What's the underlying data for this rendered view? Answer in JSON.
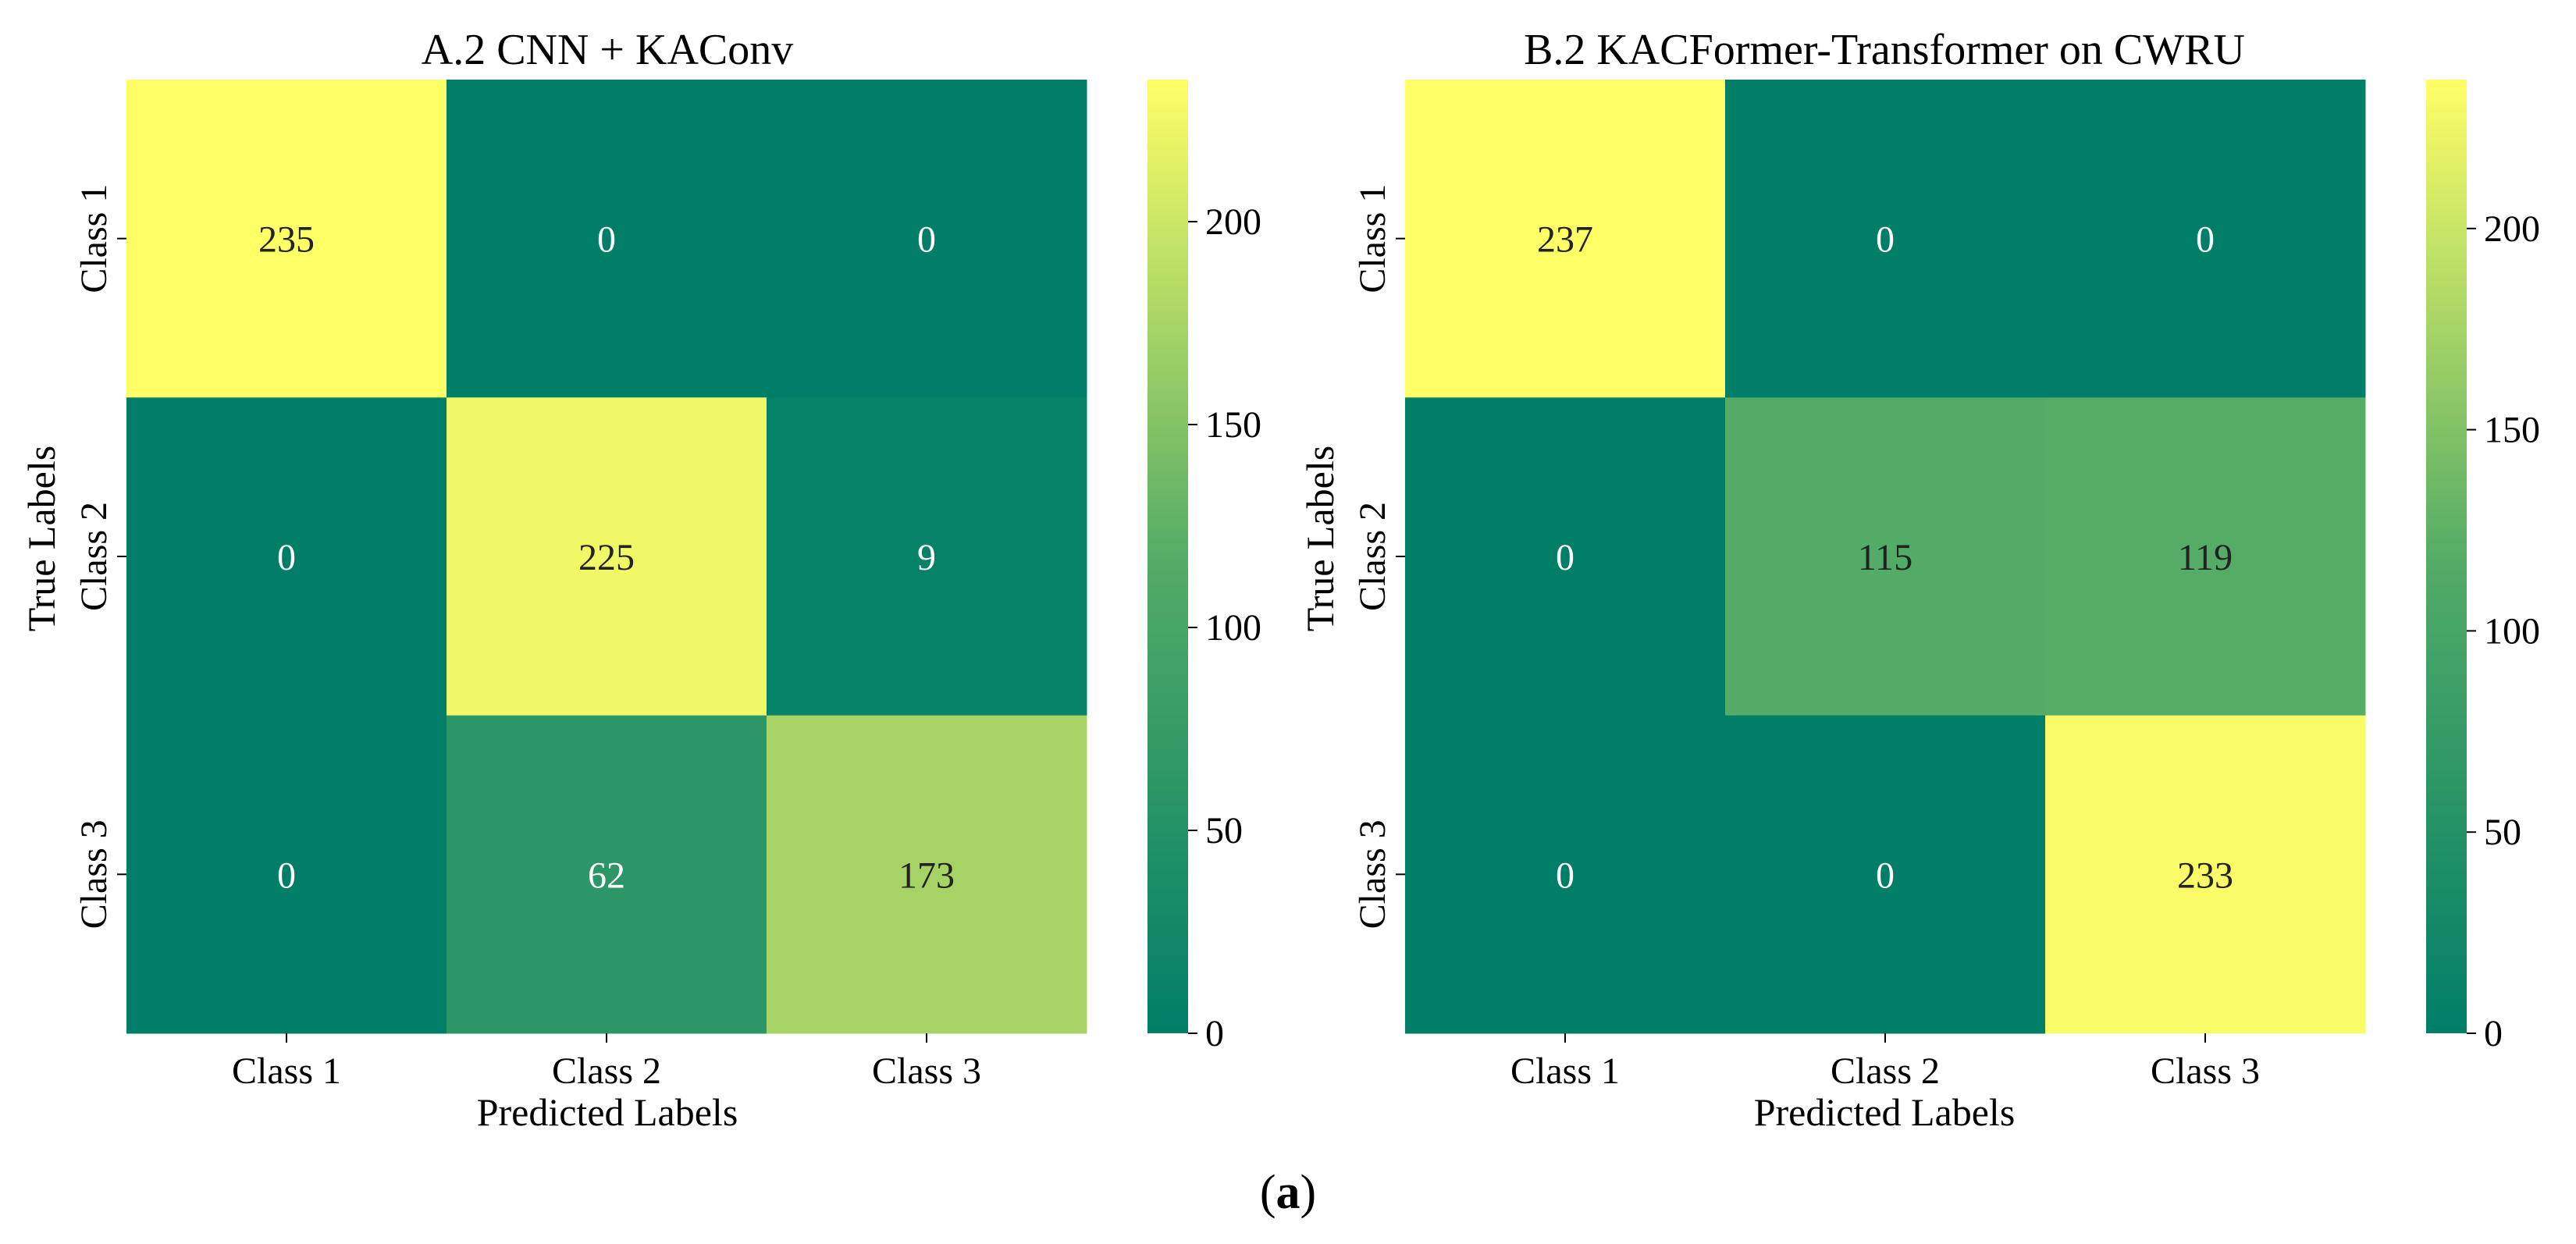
{
  "figure_caption": {
    "open": "(",
    "letter": "a",
    "close": ")"
  },
  "colors": {
    "low": "#007e67",
    "mid": "#54ac66",
    "high": "#ffff66",
    "tick_color": "#000000",
    "text_dark": "#222222",
    "text_light": "#ffffff"
  },
  "chart_data": [
    {
      "type": "heatmap",
      "title": "A.2 CNN + KAConv",
      "xlabel": "Predicted Labels",
      "ylabel": "True Labels",
      "x_categories": [
        "Class 1",
        "Class 2",
        "Class 3"
      ],
      "y_categories": [
        "Class 1",
        "Class 2",
        "Class 3"
      ],
      "values": [
        [
          235,
          0,
          0
        ],
        [
          0,
          225,
          9
        ],
        [
          0,
          62,
          173
        ]
      ],
      "colorbar": {
        "min": 0,
        "max": 235,
        "ticks": [
          0,
          50,
          100,
          150,
          200
        ],
        "tick_labels": [
          "0",
          "50",
          "100",
          "150",
          "200"
        ]
      }
    },
    {
      "type": "heatmap",
      "title": "B.2 KACFormer-Transformer on CWRU",
      "xlabel": "Predicted Labels",
      "ylabel": "True Labels",
      "x_categories": [
        "Class 1",
        "Class 2",
        "Class 3"
      ],
      "y_categories": [
        "Class 1",
        "Class 2",
        "Class 3"
      ],
      "values": [
        [
          237,
          0,
          0
        ],
        [
          0,
          115,
          119
        ],
        [
          0,
          0,
          233
        ]
      ],
      "colorbar": {
        "min": 0,
        "max": 237,
        "ticks": [
          0,
          50,
          100,
          150,
          200
        ],
        "tick_labels": [
          "0",
          "50",
          "100",
          "150",
          "200"
        ]
      }
    }
  ]
}
